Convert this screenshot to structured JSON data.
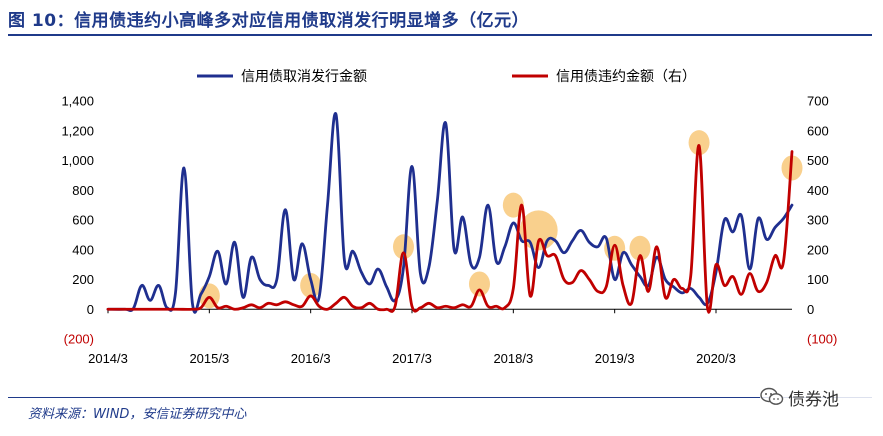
{
  "header": {
    "title": "图 10：信用债违约小高峰多对应信用债取消发行明显增多（亿元）"
  },
  "footer": {
    "source": "资料来源：WIND，安信证券研究中心",
    "watermark": "债券池"
  },
  "colors": {
    "cancel": "#1f2f8f",
    "default": "#c00000",
    "highlight": "#f5b041",
    "title": "#1f3a8a",
    "negative_tick": "#c00000"
  },
  "chart_data": {
    "type": "line",
    "legend": {
      "placement": "top"
    },
    "grid": false,
    "x_range": [
      2014.167,
      2020.917
    ],
    "x_tick_labels": [
      "2014/3",
      "2015/3",
      "2016/3",
      "2017/3",
      "2018/3",
      "2019/3",
      "2020/3"
    ],
    "x_ticks": [
      2014.167,
      2015.167,
      2016.167,
      2017.167,
      2018.167,
      2019.167,
      2020.167
    ],
    "y_left": {
      "range": [
        -200,
        1400
      ],
      "ticks": [
        -200,
        0,
        200,
        400,
        600,
        800,
        1000,
        1200,
        1400
      ],
      "tick_labels": [
        "(200)",
        "0",
        "200",
        "400",
        "600",
        "800",
        "1,000",
        "1,200",
        "1,400"
      ]
    },
    "y_right": {
      "range": [
        -100,
        700
      ],
      "ticks": [
        -100,
        0,
        100,
        200,
        300,
        400,
        500,
        600,
        700
      ],
      "tick_labels": [
        "(100)",
        "0",
        "100",
        "200",
        "300",
        "400",
        "500",
        "600",
        "700"
      ]
    },
    "series": [
      {
        "name": "信用债取消发行金额",
        "axis": "left",
        "color": "#1f2f8f",
        "points": [
          [
            2014.167,
            0
          ],
          [
            2014.333,
            0
          ],
          [
            2014.417,
            5
          ],
          [
            2014.5,
            160
          ],
          [
            2014.583,
            60
          ],
          [
            2014.667,
            160
          ],
          [
            2014.75,
            10
          ],
          [
            2014.833,
            110
          ],
          [
            2014.917,
            950
          ],
          [
            2015.0,
            40
          ],
          [
            2015.083,
            100
          ],
          [
            2015.167,
            220
          ],
          [
            2015.25,
            390
          ],
          [
            2015.333,
            170
          ],
          [
            2015.417,
            450
          ],
          [
            2015.5,
            80
          ],
          [
            2015.583,
            350
          ],
          [
            2015.667,
            200
          ],
          [
            2015.75,
            160
          ],
          [
            2015.833,
            200
          ],
          [
            2015.917,
            670
          ],
          [
            2016.0,
            200
          ],
          [
            2016.083,
            440
          ],
          [
            2016.167,
            200
          ],
          [
            2016.25,
            80
          ],
          [
            2016.333,
            700
          ],
          [
            2016.417,
            1310
          ],
          [
            2016.5,
            330
          ],
          [
            2016.583,
            390
          ],
          [
            2016.667,
            250
          ],
          [
            2016.75,
            170
          ],
          [
            2016.833,
            270
          ],
          [
            2016.917,
            150
          ],
          [
            2017.0,
            60
          ],
          [
            2017.083,
            280
          ],
          [
            2017.167,
            960
          ],
          [
            2017.25,
            240
          ],
          [
            2017.333,
            280
          ],
          [
            2017.417,
            730
          ],
          [
            2017.5,
            1250
          ],
          [
            2017.583,
            400
          ],
          [
            2017.667,
            620
          ],
          [
            2017.75,
            300
          ],
          [
            2017.833,
            350
          ],
          [
            2017.917,
            700
          ],
          [
            2018.0,
            320
          ],
          [
            2018.083,
            420
          ],
          [
            2018.167,
            580
          ],
          [
            2018.25,
            460
          ],
          [
            2018.333,
            450
          ],
          [
            2018.417,
            280
          ],
          [
            2018.5,
            460
          ],
          [
            2018.583,
            460
          ],
          [
            2018.667,
            380
          ],
          [
            2018.75,
            460
          ],
          [
            2018.833,
            530
          ],
          [
            2018.917,
            450
          ],
          [
            2019.0,
            420
          ],
          [
            2019.083,
            480
          ],
          [
            2019.167,
            200
          ],
          [
            2019.25,
            380
          ],
          [
            2019.333,
            300
          ],
          [
            2019.417,
            220
          ],
          [
            2019.5,
            160
          ],
          [
            2019.583,
            350
          ],
          [
            2019.667,
            200
          ],
          [
            2019.75,
            150
          ],
          [
            2019.833,
            110
          ],
          [
            2019.917,
            140
          ],
          [
            2020.0,
            80
          ],
          [
            2020.083,
            40
          ],
          [
            2020.167,
            250
          ],
          [
            2020.25,
            600
          ],
          [
            2020.333,
            520
          ],
          [
            2020.417,
            630
          ],
          [
            2020.5,
            270
          ],
          [
            2020.583,
            610
          ],
          [
            2020.667,
            470
          ],
          [
            2020.75,
            550
          ],
          [
            2020.833,
            610
          ],
          [
            2020.917,
            700
          ]
        ]
      },
      {
        "name": "信用债违约金额（右）",
        "axis": "right",
        "color": "#c00000",
        "points": [
          [
            2014.167,
            0
          ],
          [
            2014.5,
            0
          ],
          [
            2014.583,
            0
          ],
          [
            2014.833,
            0
          ],
          [
            2015.0,
            0
          ],
          [
            2015.083,
            5
          ],
          [
            2015.167,
            40
          ],
          [
            2015.25,
            5
          ],
          [
            2015.333,
            10
          ],
          [
            2015.417,
            0
          ],
          [
            2015.5,
            5
          ],
          [
            2015.583,
            15
          ],
          [
            2015.667,
            5
          ],
          [
            2015.75,
            20
          ],
          [
            2015.833,
            15
          ],
          [
            2015.917,
            25
          ],
          [
            2016.0,
            15
          ],
          [
            2016.083,
            10
          ],
          [
            2016.167,
            45
          ],
          [
            2016.25,
            10
          ],
          [
            2016.333,
            0
          ],
          [
            2016.417,
            20
          ],
          [
            2016.5,
            40
          ],
          [
            2016.583,
            10
          ],
          [
            2016.667,
            5
          ],
          [
            2016.75,
            20
          ],
          [
            2016.833,
            0
          ],
          [
            2016.917,
            0
          ],
          [
            2017.0,
            10
          ],
          [
            2017.083,
            190
          ],
          [
            2017.167,
            10
          ],
          [
            2017.25,
            5
          ],
          [
            2017.333,
            20
          ],
          [
            2017.417,
            5
          ],
          [
            2017.5,
            10
          ],
          [
            2017.583,
            5
          ],
          [
            2017.667,
            15
          ],
          [
            2017.75,
            10
          ],
          [
            2017.833,
            65
          ],
          [
            2017.917,
            10
          ],
          [
            2018.0,
            10
          ],
          [
            2018.083,
            5
          ],
          [
            2018.167,
            70
          ],
          [
            2018.25,
            350
          ],
          [
            2018.333,
            45
          ],
          [
            2018.417,
            230
          ],
          [
            2018.5,
            180
          ],
          [
            2018.583,
            180
          ],
          [
            2018.667,
            100
          ],
          [
            2018.75,
            90
          ],
          [
            2018.833,
            130
          ],
          [
            2018.917,
            100
          ],
          [
            2019.0,
            60
          ],
          [
            2019.083,
            75
          ],
          [
            2019.167,
            215
          ],
          [
            2019.25,
            80
          ],
          [
            2019.333,
            20
          ],
          [
            2019.417,
            180
          ],
          [
            2019.5,
            60
          ],
          [
            2019.583,
            210
          ],
          [
            2019.667,
            40
          ],
          [
            2019.75,
            100
          ],
          [
            2019.833,
            70
          ],
          [
            2019.917,
            110
          ],
          [
            2020.0,
            550
          ],
          [
            2020.083,
            5
          ],
          [
            2020.167,
            150
          ],
          [
            2020.25,
            80
          ],
          [
            2020.333,
            110
          ],
          [
            2020.417,
            50
          ],
          [
            2020.5,
            120
          ],
          [
            2020.583,
            60
          ],
          [
            2020.667,
            90
          ],
          [
            2020.75,
            180
          ],
          [
            2020.833,
            160
          ],
          [
            2020.917,
            530
          ]
        ]
      }
    ],
    "highlights": [
      {
        "x": 2015.167,
        "y_right": 45,
        "size": "small"
      },
      {
        "x": 2016.167,
        "y_right": 80,
        "size": "small"
      },
      {
        "x": 2017.083,
        "y_right": 210,
        "size": "small"
      },
      {
        "x": 2017.833,
        "y_right": 85,
        "size": "small"
      },
      {
        "x": 2018.167,
        "y_right": 350,
        "size": "small"
      },
      {
        "x": 2018.417,
        "y_right": 265,
        "size": "large"
      },
      {
        "x": 2019.167,
        "y_right": 205,
        "size": "small"
      },
      {
        "x": 2019.417,
        "y_right": 205,
        "size": "small"
      },
      {
        "x": 2020.0,
        "y_right": 560,
        "size": "small"
      },
      {
        "x": 2020.917,
        "y_right": 475,
        "size": "small"
      }
    ]
  }
}
